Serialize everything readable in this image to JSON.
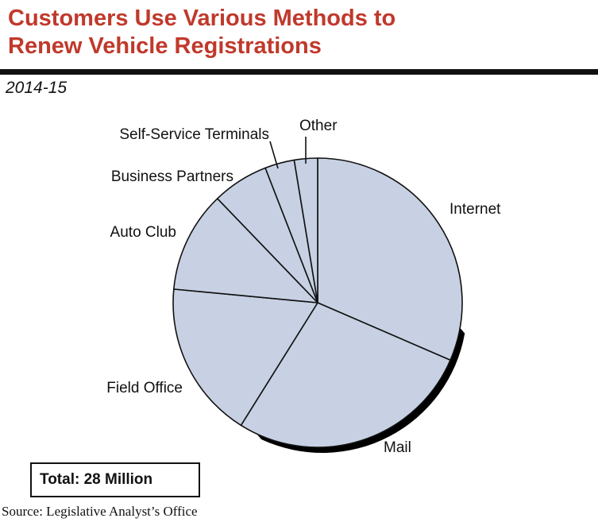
{
  "title_line1": "Customers Use Various Methods to",
  "title_line2": "Renew Vehicle Registrations",
  "subtitle": "2014-15",
  "total_label": "Total: 28 Million",
  "source": "Source: Legislative Analyst’s Office",
  "colors": {
    "title": "#c0392b",
    "slice_fill": "#c7d1e3",
    "slice_stroke": "#111111",
    "shadow": "#000000"
  },
  "chart_data": {
    "type": "pie",
    "unit": "percent (estimated)",
    "total": "28 Million",
    "start": "12 o'clock, clockwise",
    "slices": [
      {
        "label": "Internet",
        "value": 31.5
      },
      {
        "label": "Mail",
        "value": 27.4
      },
      {
        "label": "Field Office",
        "value": 17.6
      },
      {
        "label": "Auto Club",
        "value": 11.3
      },
      {
        "label": "Business Partners",
        "value": 6.3
      },
      {
        "label": "Self-Service Terminals",
        "value": 3.3
      },
      {
        "label": "Other",
        "value": 2.6
      }
    ]
  }
}
